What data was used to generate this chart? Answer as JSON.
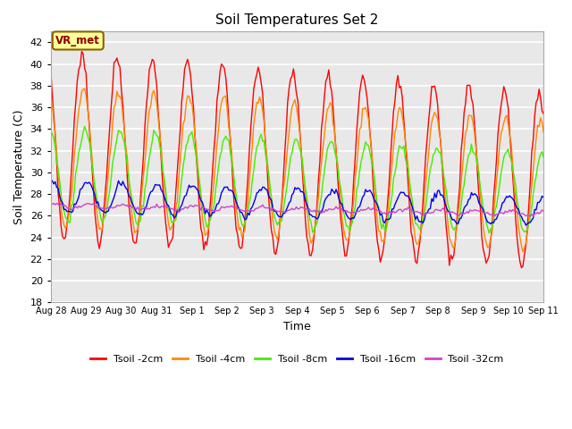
{
  "title": "Soil Temperatures Set 2",
  "xlabel": "Time",
  "ylabel": "Soil Temperature (C)",
  "ylim": [
    18,
    43
  ],
  "yticks": [
    18,
    20,
    22,
    24,
    26,
    28,
    30,
    32,
    34,
    36,
    38,
    40,
    42
  ],
  "plot_bg_color": "#e8e8e8",
  "fig_bg_color": "#ffffff",
  "grid_color": "#ffffff",
  "annotation_text": "VR_met",
  "annotation_box_color": "#ffff99",
  "annotation_box_edge": "#8b6000",
  "series": {
    "Tsoil -2cm": {
      "color": "#ff0000",
      "lw": 1.0
    },
    "Tsoil -4cm": {
      "color": "#ff8800",
      "lw": 1.0
    },
    "Tsoil -8cm": {
      "color": "#44ee00",
      "lw": 1.0
    },
    "Tsoil -16cm": {
      "color": "#0000ee",
      "lw": 1.0
    },
    "Tsoil -32cm": {
      "color": "#cc44cc",
      "lw": 1.0
    }
  },
  "xtick_labels": [
    "Aug 28",
    "Aug 29",
    "Aug 30",
    "Aug 31",
    "Sep 1",
    "Sep 2",
    "Sep 3",
    "Sep 4",
    "Sep 5",
    "Sep 6",
    "Sep 7",
    "Sep 8",
    "Sep 9",
    "Sep 10",
    "Sep 11"
  ],
  "n_days": 14,
  "points_per_day": 24
}
